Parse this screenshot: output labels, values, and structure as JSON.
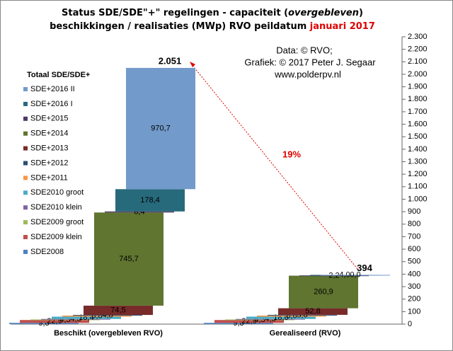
{
  "chart_data": {
    "type": "waterfall",
    "title_line1": "Status SDE/SDE\"+\"  regelingen - capaciteit (",
    "title_italic": "overgebleven",
    "title_close": ")",
    "title_line2": "beschikkingen  / realisaties (MWp) RVO peildatum ",
    "title_date": "januari 2017",
    "credits": [
      "Data: © RVO;",
      "Grafiek:  © 2017 Peter J. Segaar",
      "www.polderpv.nl"
    ],
    "annotation": "19%",
    "legend_title": "Totaal SDE/SDE+",
    "categories": [
      "Beschikt (overgebleven RVO)",
      "Gerealiseerd (RVO)"
    ],
    "series": [
      {
        "name": "SDE2008",
        "color": "#4f81bd",
        "values": [
          9.8,
          9.8
        ],
        "value_labels": [
          "9,8",
          "9,8"
        ]
      },
      {
        "name": "SDE2009 klein",
        "color": "#c0504d",
        "values": [
          22.9,
          22.9
        ],
        "value_labels": [
          "22,9",
          "22,9"
        ]
      },
      {
        "name": "SDE2009 groot",
        "color": "#9bbb59",
        "values": [
          4.3,
          4.3
        ],
        "value_labels": [
          "4,3",
          "4,3"
        ]
      },
      {
        "name": "SDE2010 klein",
        "color": "#8064a2",
        "values": [
          4.3,
          4.3
        ],
        "value_labels": [
          "4,3",
          "4,3"
        ]
      },
      {
        "name": "SDE2010 groot",
        "color": "#4bacc6",
        "values": [
          18.4,
          18.6
        ],
        "value_labels": [
          "18,4",
          "18,6"
        ]
      },
      {
        "name": "SDE+2011",
        "color": "#f79646",
        "values": [
          8.8,
          8.6
        ],
        "value_labels": [
          "8,8",
          "8,6"
        ]
      },
      {
        "name": "SDE+2012",
        "color": "#2c4d75",
        "values": [
          4.8,
          5.6
        ],
        "value_labels": [
          "4,8",
          "5,6"
        ]
      },
      {
        "name": "SDE+2013",
        "color": "#772c2a",
        "values": [
          74.5,
          52.8
        ],
        "value_labels": [
          "74,5",
          "52,8"
        ]
      },
      {
        "name": "SDE+2014",
        "color": "#5f7530",
        "values": [
          745.7,
          260.9
        ],
        "value_labels": [
          "745,7",
          "260,9"
        ]
      },
      {
        "name": "SDE+2015",
        "color": "#4d3b62",
        "values": [
          8.4,
          2.2
        ],
        "value_labels": [
          "8,4",
          "2,2"
        ]
      },
      {
        "name": "SDE+2016 I",
        "color": "#276a7c",
        "values": [
          178.4,
          4.0
        ],
        "value_labels": [
          "178,4",
          "4,0"
        ]
      },
      {
        "name": "SDE+2016 II",
        "color": "#729aca",
        "values": [
          970.7,
          0.0
        ],
        "value_labels": [
          "970,7",
          "0,0"
        ]
      }
    ],
    "totals": {
      "values": [
        2051,
        394
      ],
      "value_labels": [
        "2.051",
        "394"
      ]
    },
    "ylim": [
      0,
      2300
    ],
    "yticks": [
      0,
      100,
      200,
      300,
      400,
      500,
      600,
      700,
      800,
      900,
      {
        "value": 1000,
        "label": "1.000"
      },
      {
        "value": 1100,
        "label": "1.100"
      },
      {
        "value": 1200,
        "label": "1.200"
      },
      {
        "value": 1300,
        "label": "1.300"
      },
      {
        "value": 1400,
        "label": "1.400"
      },
      {
        "value": 1500,
        "label": "1.500"
      },
      {
        "value": 1600,
        "label": "1.600"
      },
      {
        "value": 1700,
        "label": "1.700"
      },
      {
        "value": 1800,
        "label": "1.800"
      },
      {
        "value": 1900,
        "label": "1.900"
      },
      {
        "value": 2000,
        "label": "2.000"
      },
      {
        "value": 2100,
        "label": "2.100"
      },
      {
        "value": 2200,
        "label": "2.200"
      },
      {
        "value": 2300,
        "label": "2.300"
      }
    ],
    "y_axis_side": "right"
  }
}
